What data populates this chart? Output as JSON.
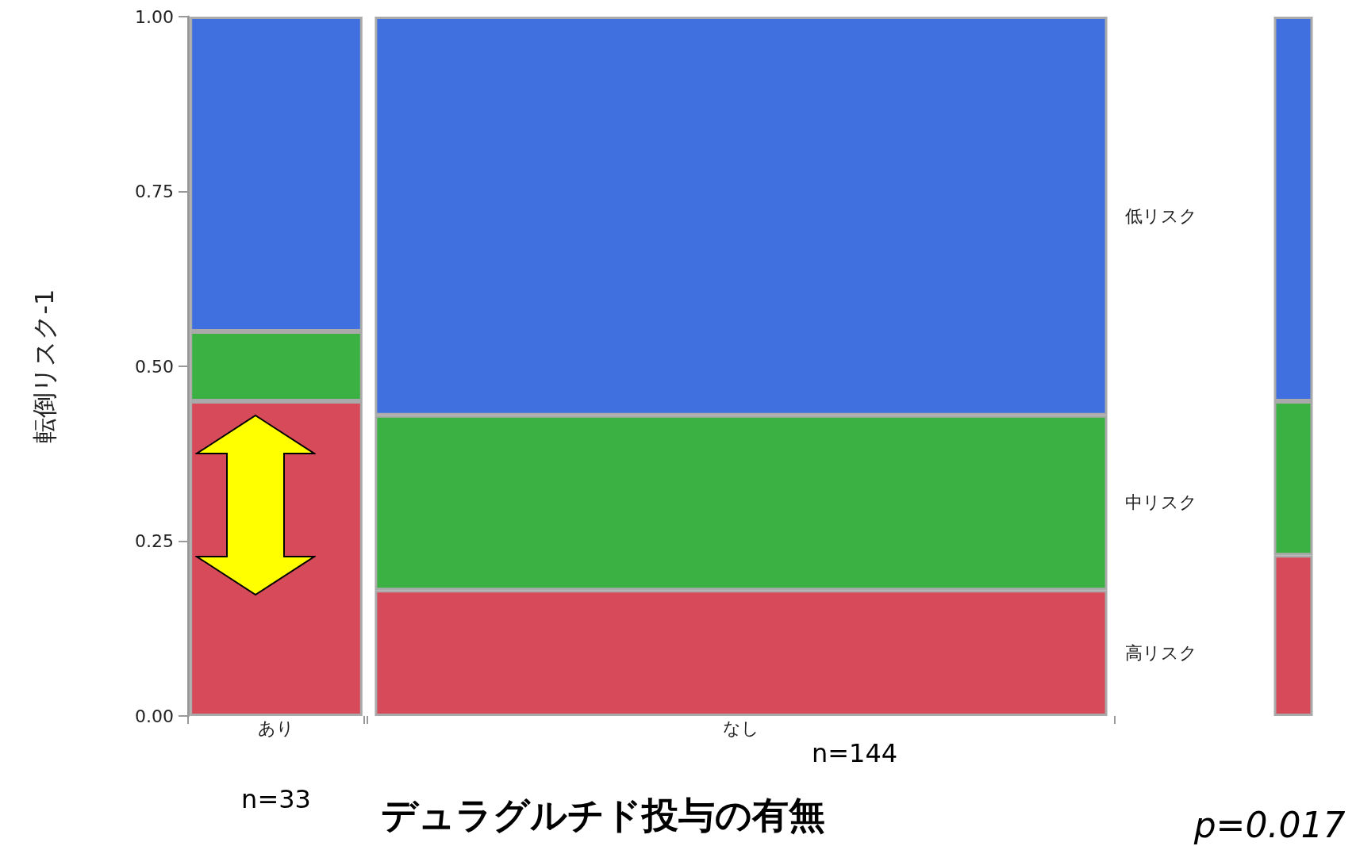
{
  "chart_data": {
    "type": "bar",
    "stacked": true,
    "relative": false,
    "xlabel": "デュラグルチド投与の有無",
    "ylabel": "転倒リスク-1",
    "categories": [
      "あり",
      "なし",
      null
    ],
    "series": [
      {
        "name": "高リスク",
        "color": "#d64a5a",
        "values": [
          0.45,
          0.18,
          0.23
        ]
      },
      {
        "name": "中リスク",
        "color": "#3bb143",
        "values": [
          0.1,
          0.25,
          0.22
        ]
      },
      {
        "name": "低リスク",
        "color": "#4070e0",
        "values": [
          0.45,
          0.57,
          0.55
        ]
      }
    ],
    "ylim": [
      0,
      1
    ],
    "yticks": [
      {
        "value": 0,
        "label": "0.00"
      },
      {
        "value": 0.25,
        "label": "0.25"
      },
      {
        "value": 0.5,
        "label": "0.50"
      },
      {
        "value": 0.75,
        "label": "0.75"
      },
      {
        "value": 1,
        "label": "1.00"
      }
    ],
    "annotations": [
      "n=33",
      "n=144",
      "p=0.017"
    ],
    "legend": false,
    "grid": false
  }
}
